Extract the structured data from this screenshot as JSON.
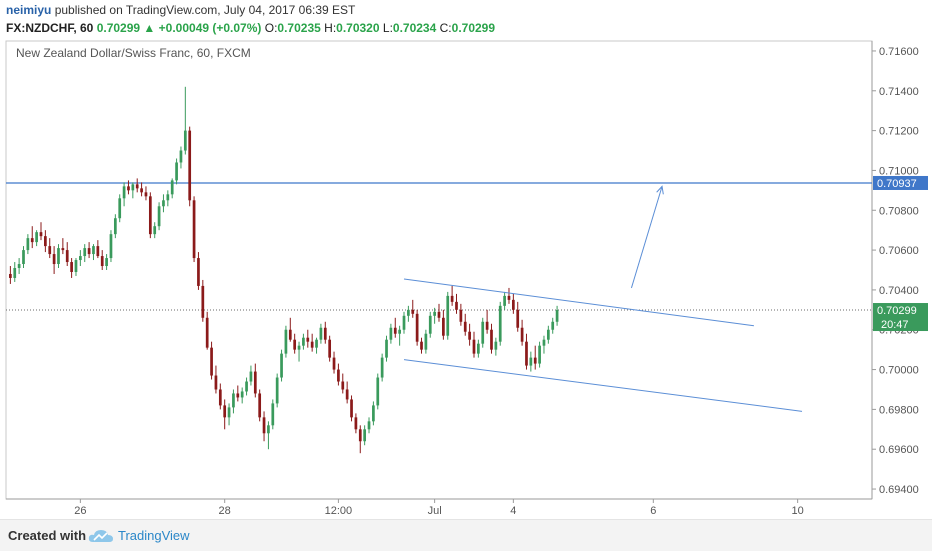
{
  "header": {
    "author": "neimiyu",
    "published": "published on TradingView.com, July 04, 2017 06:39 EST",
    "symbol": "FX:NZDCHF, 60",
    "last": "0.70299",
    "change_arrow": "▲",
    "change": "+0.00049 (+0.07%)",
    "o_label": "O:",
    "o": "0.70235",
    "h_label": "H:",
    "h": "0.70320",
    "l_label": "L:",
    "l": "0.70234",
    "c_label": "C:",
    "c": "0.70299"
  },
  "footer": {
    "created_with": "Created with",
    "brand": "TradingView",
    "logo_icon": "tradingview-cloud-icon"
  },
  "colors": {
    "up": "#3a9a5c",
    "down": "#8b1a1a",
    "trendline": "#5b8ed6",
    "hline": "#3f77c9",
    "last_label_bg": "#3a9a5c",
    "hline_label_bg": "#3f77c9"
  },
  "chart_data": {
    "type": "candlestick",
    "title": "New Zealand Dollar/Swiss Franc, 60, FXCM",
    "y_ticks": [
      "0.71600",
      "0.71400",
      "0.71200",
      "0.71000",
      "0.70800",
      "0.70600",
      "0.70400",
      "0.70200",
      "0.70000",
      "0.69800",
      "0.69600",
      "0.69400"
    ],
    "x_ticks": [
      {
        "label": "26",
        "i": 16
      },
      {
        "label": "28",
        "i": 49
      },
      {
        "label": "12:00",
        "i": 75
      },
      {
        "label": "Jul",
        "i": 97
      },
      {
        "label": "4",
        "i": 115
      },
      {
        "label": "6",
        "i": 147
      },
      {
        "label": "10",
        "i": 180
      }
    ],
    "ylim": [
      0.6935,
      0.7165
    ],
    "x_range": [
      -1,
      197
    ],
    "horizontal_line": {
      "value": 0.70937,
      "label": "0.70937"
    },
    "last_price": {
      "value": 0.70299,
      "label": "0.70299",
      "countdown": "20:47"
    },
    "trendlines": [
      {
        "x1": 90,
        "y1": 0.70455,
        "x2": 170,
        "y2": 0.7022
      },
      {
        "x1": 90,
        "y1": 0.7005,
        "x2": 181,
        "y2": 0.6979
      }
    ],
    "arrow": {
      "x1": 142,
      "y1": 0.7041,
      "x2": 149,
      "y2": 0.7092
    },
    "candles": [
      [
        0.7048,
        0.7052,
        0.7043,
        0.7046
      ],
      [
        0.7046,
        0.7054,
        0.7044,
        0.7051
      ],
      [
        0.7051,
        0.7056,
        0.7048,
        0.7053
      ],
      [
        0.7053,
        0.7062,
        0.7051,
        0.706
      ],
      [
        0.706,
        0.7068,
        0.7058,
        0.7066
      ],
      [
        0.7066,
        0.7072,
        0.7061,
        0.7064
      ],
      [
        0.7064,
        0.707,
        0.7062,
        0.7069
      ],
      [
        0.7069,
        0.7074,
        0.7065,
        0.7067
      ],
      [
        0.7067,
        0.707,
        0.7059,
        0.7062
      ],
      [
        0.7062,
        0.7066,
        0.7056,
        0.7058
      ],
      [
        0.7058,
        0.7062,
        0.7048,
        0.7053
      ],
      [
        0.7053,
        0.7063,
        0.7051,
        0.7061
      ],
      [
        0.7061,
        0.7066,
        0.7058,
        0.706
      ],
      [
        0.706,
        0.7064,
        0.7052,
        0.7054
      ],
      [
        0.7054,
        0.7056,
        0.7046,
        0.7049
      ],
      [
        0.7049,
        0.7056,
        0.7047,
        0.7055
      ],
      [
        0.7055,
        0.706,
        0.7052,
        0.7057
      ],
      [
        0.7057,
        0.7063,
        0.7054,
        0.7061
      ],
      [
        0.7061,
        0.7064,
        0.7056,
        0.7058
      ],
      [
        0.7058,
        0.7063,
        0.7055,
        0.7062
      ],
      [
        0.7062,
        0.7065,
        0.7056,
        0.7057
      ],
      [
        0.7057,
        0.706,
        0.705,
        0.7052
      ],
      [
        0.7052,
        0.7058,
        0.705,
        0.7056
      ],
      [
        0.7056,
        0.707,
        0.7054,
        0.7068
      ],
      [
        0.7068,
        0.7078,
        0.7066,
        0.7076
      ],
      [
        0.7076,
        0.7088,
        0.7074,
        0.7086
      ],
      [
        0.7086,
        0.7094,
        0.7082,
        0.7092
      ],
      [
        0.7092,
        0.7095,
        0.7088,
        0.709
      ],
      [
        0.709,
        0.7094,
        0.7086,
        0.7093
      ],
      [
        0.7093,
        0.7096,
        0.7089,
        0.7091
      ],
      [
        0.7091,
        0.7094,
        0.7087,
        0.7089
      ],
      [
        0.7089,
        0.7092,
        0.7085,
        0.7087
      ],
      [
        0.7087,
        0.7089,
        0.7066,
        0.7068
      ],
      [
        0.7068,
        0.7074,
        0.7066,
        0.7072
      ],
      [
        0.7072,
        0.7084,
        0.707,
        0.7082
      ],
      [
        0.7082,
        0.7088,
        0.7079,
        0.7085
      ],
      [
        0.7085,
        0.709,
        0.7082,
        0.7088
      ],
      [
        0.7088,
        0.7096,
        0.7086,
        0.7095
      ],
      [
        0.7095,
        0.7106,
        0.7093,
        0.7104
      ],
      [
        0.7104,
        0.7112,
        0.7101,
        0.711
      ],
      [
        0.711,
        0.7142,
        0.7108,
        0.712
      ],
      [
        0.712,
        0.7122,
        0.7082,
        0.7085
      ],
      [
        0.7085,
        0.7087,
        0.7054,
        0.7056
      ],
      [
        0.7056,
        0.7059,
        0.704,
        0.7042
      ],
      [
        0.7042,
        0.7045,
        0.7024,
        0.7026
      ],
      [
        0.7026,
        0.7029,
        0.701,
        0.7011
      ],
      [
        0.7011,
        0.7014,
        0.6995,
        0.6997
      ],
      [
        0.6997,
        0.7002,
        0.6988,
        0.699
      ],
      [
        0.699,
        0.6993,
        0.698,
        0.6982
      ],
      [
        0.6982,
        0.6985,
        0.697,
        0.6976
      ],
      [
        0.6976,
        0.6983,
        0.6972,
        0.6981
      ],
      [
        0.6981,
        0.699,
        0.6978,
        0.6988
      ],
      [
        0.6988,
        0.6992,
        0.6984,
        0.6986
      ],
      [
        0.6986,
        0.6991,
        0.6983,
        0.6989
      ],
      [
        0.6989,
        0.6996,
        0.6987,
        0.6994
      ],
      [
        0.6994,
        0.7002,
        0.6992,
        0.6999
      ],
      [
        0.6999,
        0.7003,
        0.6986,
        0.6988
      ],
      [
        0.6988,
        0.699,
        0.6974,
        0.6976
      ],
      [
        0.6976,
        0.6979,
        0.6964,
        0.6968
      ],
      [
        0.6968,
        0.6974,
        0.696,
        0.6972
      ],
      [
        0.6972,
        0.6985,
        0.697,
        0.6983
      ],
      [
        0.6983,
        0.6998,
        0.6981,
        0.6996
      ],
      [
        0.6996,
        0.701,
        0.6994,
        0.7008
      ],
      [
        0.7008,
        0.7022,
        0.7006,
        0.702
      ],
      [
        0.702,
        0.7026,
        0.7014,
        0.7015
      ],
      [
        0.7015,
        0.7018,
        0.7008,
        0.701
      ],
      [
        0.701,
        0.7014,
        0.7004,
        0.7012
      ],
      [
        0.7012,
        0.7018,
        0.701,
        0.7016
      ],
      [
        0.7016,
        0.702,
        0.7011,
        0.7014
      ],
      [
        0.7014,
        0.7018,
        0.7009,
        0.7011
      ],
      [
        0.7011,
        0.7016,
        0.7008,
        0.7015
      ],
      [
        0.7015,
        0.7023,
        0.7013,
        0.7021
      ],
      [
        0.7021,
        0.7024,
        0.7013,
        0.7015
      ],
      [
        0.7015,
        0.7017,
        0.7004,
        0.7006
      ],
      [
        0.7006,
        0.7009,
        0.6998,
        0.7
      ],
      [
        0.7,
        0.7003,
        0.6992,
        0.6994
      ],
      [
        0.6994,
        0.6998,
        0.6988,
        0.699
      ],
      [
        0.699,
        0.6994,
        0.6983,
        0.6985
      ],
      [
        0.6985,
        0.6987,
        0.6974,
        0.6976
      ],
      [
        0.6976,
        0.6978,
        0.6968,
        0.697
      ],
      [
        0.697,
        0.6972,
        0.6958,
        0.6964
      ],
      [
        0.6964,
        0.6972,
        0.6962,
        0.697
      ],
      [
        0.697,
        0.6976,
        0.6968,
        0.6974
      ],
      [
        0.6974,
        0.6984,
        0.6972,
        0.6982
      ],
      [
        0.6982,
        0.6998,
        0.698,
        0.6996
      ],
      [
        0.6996,
        0.7008,
        0.6994,
        0.7006
      ],
      [
        0.7006,
        0.7017,
        0.7004,
        0.7015
      ],
      [
        0.7015,
        0.7023,
        0.7013,
        0.7021
      ],
      [
        0.7021,
        0.7026,
        0.7016,
        0.7018
      ],
      [
        0.7018,
        0.7022,
        0.7012,
        0.702
      ],
      [
        0.702,
        0.7029,
        0.7018,
        0.7027
      ],
      [
        0.7027,
        0.7032,
        0.7024,
        0.703
      ],
      [
        0.703,
        0.7035,
        0.7026,
        0.7028
      ],
      [
        0.7028,
        0.703,
        0.7012,
        0.7014
      ],
      [
        0.7014,
        0.7016,
        0.7008,
        0.701
      ],
      [
        0.701,
        0.702,
        0.7008,
        0.7018
      ],
      [
        0.7018,
        0.7029,
        0.7016,
        0.7027
      ],
      [
        0.7027,
        0.7031,
        0.7023,
        0.7029
      ],
      [
        0.7029,
        0.7033,
        0.7024,
        0.7026
      ],
      [
        0.7026,
        0.703,
        0.7015,
        0.7017
      ],
      [
        0.7017,
        0.7039,
        0.7015,
        0.7037
      ],
      [
        0.7037,
        0.7042,
        0.7032,
        0.7034
      ],
      [
        0.7034,
        0.7038,
        0.7028,
        0.703
      ],
      [
        0.703,
        0.7033,
        0.7022,
        0.7024
      ],
      [
        0.7024,
        0.7028,
        0.7017,
        0.7019
      ],
      [
        0.7019,
        0.7023,
        0.7012,
        0.7015
      ],
      [
        0.7015,
        0.7019,
        0.7006,
        0.7008
      ],
      [
        0.7008,
        0.7015,
        0.7006,
        0.7013
      ],
      [
        0.7013,
        0.7026,
        0.7011,
        0.7024
      ],
      [
        0.7024,
        0.703,
        0.7018,
        0.702
      ],
      [
        0.702,
        0.7023,
        0.7008,
        0.701
      ],
      [
        0.701,
        0.7016,
        0.7007,
        0.7014
      ],
      [
        0.7014,
        0.7034,
        0.7012,
        0.7032
      ],
      [
        0.7032,
        0.7039,
        0.703,
        0.7037
      ],
      [
        0.7037,
        0.7041,
        0.7033,
        0.7035
      ],
      [
        0.7035,
        0.7038,
        0.7028,
        0.703
      ],
      [
        0.703,
        0.7034,
        0.7019,
        0.7021
      ],
      [
        0.7021,
        0.7025,
        0.7012,
        0.7014
      ],
      [
        0.7014,
        0.7018,
        0.7,
        0.7002
      ],
      [
        0.7002,
        0.7009,
        0.6999,
        0.7006
      ],
      [
        0.7006,
        0.7012,
        0.7,
        0.7003
      ],
      [
        0.7003,
        0.7014,
        0.7001,
        0.7012
      ],
      [
        0.7012,
        0.7017,
        0.7008,
        0.7015
      ],
      [
        0.7015,
        0.7022,
        0.7013,
        0.702
      ],
      [
        0.702,
        0.7026,
        0.7018,
        0.7024
      ],
      [
        0.7024,
        0.7032,
        0.7022,
        0.70299
      ]
    ]
  }
}
